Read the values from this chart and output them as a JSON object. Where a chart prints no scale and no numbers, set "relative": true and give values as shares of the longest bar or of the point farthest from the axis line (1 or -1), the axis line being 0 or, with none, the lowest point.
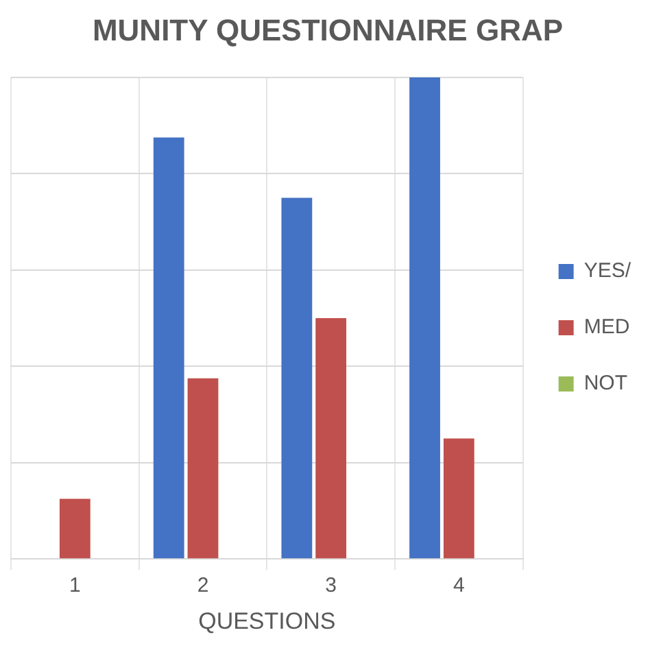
{
  "chart_data": {
    "type": "bar",
    "title": "MUNITY QUESTIONNAIRE GRAP",
    "xlabel": "QUESTIONS",
    "categories": [
      "1",
      "2",
      "3",
      "4"
    ],
    "relative": true,
    "grid": true,
    "legend": "right",
    "series": [
      {
        "name": "YES/",
        "color": "#4472c4",
        "values": [
          null,
          0.875,
          0.75,
          1
        ]
      },
      {
        "name": "MED",
        "color": "#c0504d",
        "values": [
          0.125,
          0.375,
          0.5,
          0.25
        ]
      },
      {
        "name": "NOT",
        "color": "#9bbb59",
        "values": [
          0,
          0,
          0,
          0
        ]
      }
    ]
  }
}
